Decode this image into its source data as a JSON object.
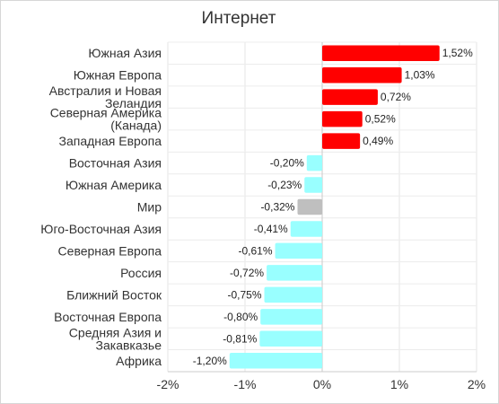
{
  "chart_data": {
    "type": "bar",
    "orientation": "horizontal",
    "title": "Интернет",
    "xlabel": "",
    "ylabel": "",
    "xlim": [
      -2,
      2
    ],
    "grid": true,
    "legend": "none",
    "categories": [
      "Южная Азия",
      "Южная Европа",
      "Австралия и Новая Зеландия",
      "Северная Америка (Канада)",
      "Западная Европа",
      "Восточная Азия",
      "Южная Америка",
      "Мир",
      "Юго-Восточная Азия",
      "Северная Европа",
      "Россия",
      "Ближний Восток",
      "Восточная Европа",
      "Средняя Азия и Закавказье",
      "Африка"
    ],
    "category_lines": [
      [
        "Южная Азия"
      ],
      [
        "Южная Европа"
      ],
      [
        "Австралия и Новая",
        "Зеландия"
      ],
      [
        "Северная Америка",
        "(Канада)"
      ],
      [
        "Западная Европа"
      ],
      [
        "Восточная Азия"
      ],
      [
        "Южная Америка"
      ],
      [
        "Мир"
      ],
      [
        "Юго-Восточная Азия"
      ],
      [
        "Северная Европа"
      ],
      [
        "Россия"
      ],
      [
        "Ближний Восток"
      ],
      [
        "Восточная Европа"
      ],
      [
        "Средняя Азия и",
        "Закавказье"
      ],
      [
        "Африка"
      ]
    ],
    "values": [
      1.52,
      1.03,
      0.72,
      0.52,
      0.49,
      -0.2,
      -0.23,
      -0.32,
      -0.41,
      -0.61,
      -0.72,
      -0.75,
      -0.8,
      -0.81,
      -1.2
    ],
    "value_labels": [
      "1,52%",
      "1,03%",
      "0,72%",
      "0,52%",
      "0,49%",
      "-0,20%",
      "-0,23%",
      "-0,32%",
      "-0,41%",
      "-0,61%",
      "-0,72%",
      "-0,75%",
      "-0,80%",
      "-0,81%",
      "-1,20%"
    ],
    "x_ticks": [
      -2,
      -1,
      0,
      1,
      2
    ],
    "x_tick_labels": [
      "-2%",
      "-1%",
      "0%",
      "1%",
      "2%"
    ],
    "colors": {
      "positive": "#ff0000",
      "negative": "#99ffff",
      "world": "#bfbfbf"
    },
    "highlight_category": "Мир"
  }
}
